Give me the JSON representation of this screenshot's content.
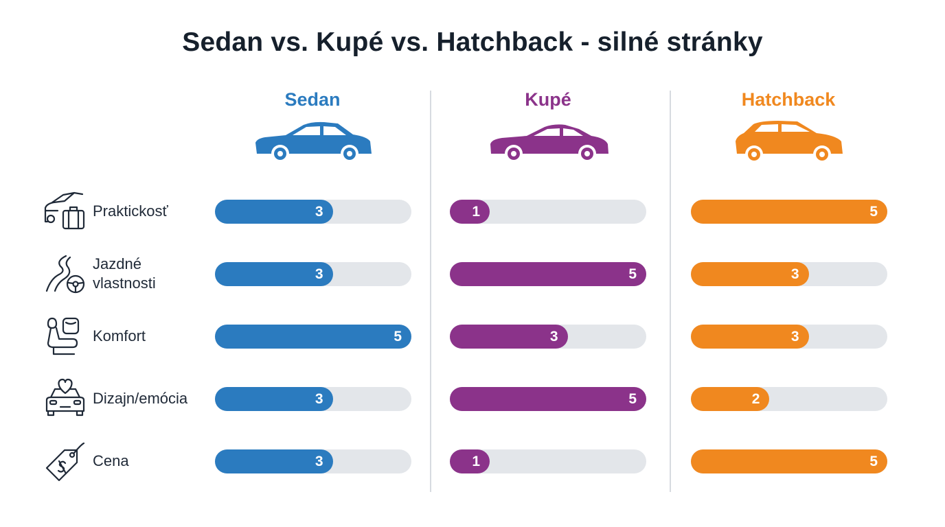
{
  "title": "Sedan vs. Kupé vs. Hatchback - silné stránky",
  "colors": {
    "sedan": "#2b7bbf",
    "kupe": "#8b338a",
    "hatchback": "#f0881f",
    "track": "#e3e6ea"
  },
  "icons": [
    "car-trunk-luggage-icon",
    "winding-road-steering-icon",
    "car-seat-icon",
    "car-heart-icon",
    "price-tag-icon"
  ],
  "chart_data": {
    "type": "bar",
    "title": "Sedan vs. Kupé vs. Hatchback - silné stránky",
    "categories": [
      "Praktickosť",
      "Jazdné vlastnosti",
      "Komfort",
      "Dizajn/emócia",
      "Cena"
    ],
    "category_lines": [
      [
        "Praktickosť"
      ],
      [
        "Jazdné",
        "vlastnosti"
      ],
      [
        "Komfort"
      ],
      [
        "Dizajn/emócia"
      ],
      [
        "Cena"
      ]
    ],
    "xlim": [
      0,
      5
    ],
    "series": [
      {
        "name": "Sedan",
        "color": "#2b7bbf",
        "values": [
          3,
          3,
          5,
          3,
          3
        ]
      },
      {
        "name": "Kupé",
        "color": "#8b338a",
        "values": [
          1,
          5,
          3,
          5,
          1
        ]
      },
      {
        "name": "Hatchback",
        "color": "#f0881f",
        "values": [
          5,
          3,
          3,
          2,
          5
        ]
      }
    ],
    "grid": false,
    "legend": "top"
  }
}
